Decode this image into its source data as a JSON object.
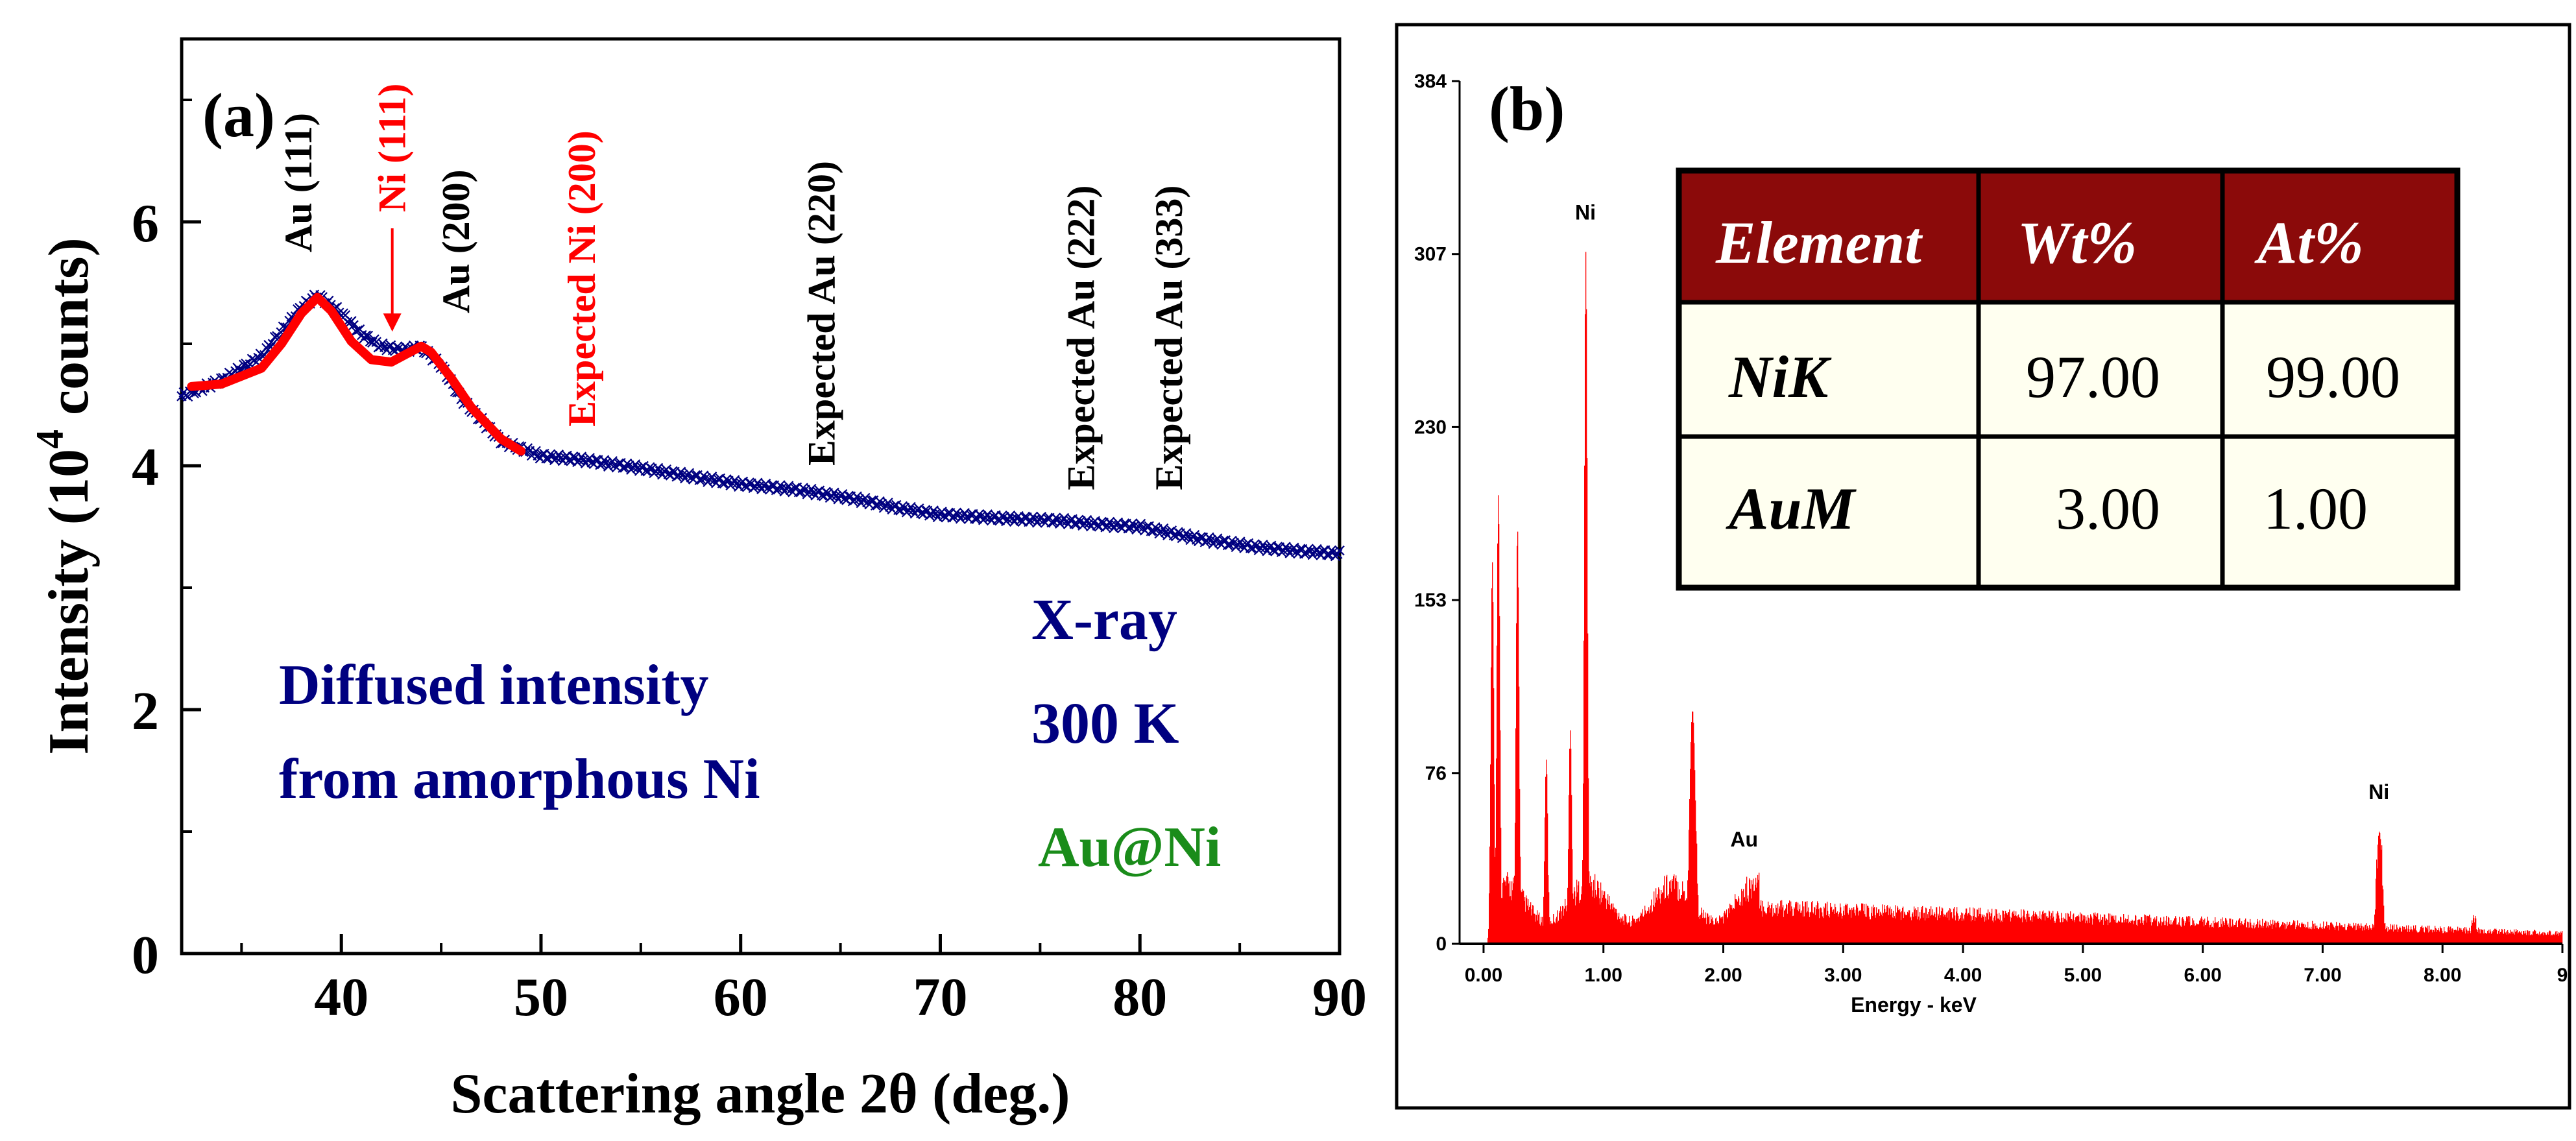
{
  "colors": {
    "xrd_data": "#000080",
    "xrd_fit": "#ff0000",
    "expected_ni": "#ff0000",
    "text_blue": "#000080",
    "text_green": "#1a8c1a",
    "eds_spectrum": "#ff0000",
    "table_header_bg": "#8b0a0a",
    "table_cell_bg": "#fffff0"
  },
  "chart_data": [
    {
      "type": "scatter",
      "panel_label": "(a)",
      "title": "",
      "xlabel": "Scattering angle 2θ (deg.)",
      "ylabel_main": "Intensity (10",
      "ylabel_sup": "4",
      "ylabel_tail": " counts)",
      "xlim": [
        32,
        90
      ],
      "ylim": [
        0,
        7.5
      ],
      "xticks": [
        40,
        50,
        60,
        70,
        80,
        90
      ],
      "yticks": [
        0,
        2,
        4,
        6
      ],
      "grid": false,
      "series": [
        {
          "marker": "x",
          "x": [
            32,
            34,
            36,
            37,
            38,
            38.8,
            40,
            41,
            42,
            43,
            44,
            45,
            46,
            48,
            50,
            52,
            55,
            58,
            60,
            63,
            66,
            68,
            70,
            73,
            76,
            78,
            80,
            83,
            86,
            88,
            90
          ],
          "y": [
            4.57,
            4.7,
            4.9,
            5.1,
            5.3,
            5.4,
            5.25,
            5.08,
            4.98,
            4.95,
            4.97,
            4.82,
            4.55,
            4.2,
            4.08,
            4.05,
            3.98,
            3.9,
            3.85,
            3.8,
            3.72,
            3.65,
            3.6,
            3.57,
            3.55,
            3.52,
            3.5,
            3.4,
            3.33,
            3.3,
            3.28
          ]
        },
        {
          "type": "line",
          "x": [
            32.5,
            34,
            36,
            37,
            38,
            38.8,
            39.5,
            40.5,
            41.5,
            42.5,
            43.3,
            44,
            44.5,
            45.5,
            46.5,
            48,
            49
          ],
          "y": [
            4.65,
            4.67,
            4.8,
            5.0,
            5.25,
            5.38,
            5.27,
            5.02,
            4.87,
            4.85,
            4.92,
            4.98,
            4.93,
            4.72,
            4.48,
            4.22,
            4.12
          ]
        }
      ],
      "annotations": [
        {
          "text": "Au (111)",
          "x": 38.5,
          "y": 5.75,
          "color": "black"
        },
        {
          "text": "Ni (111)",
          "x": 43.2,
          "y": 6.08,
          "color": "red",
          "arrow_to_y": 5.1
        },
        {
          "text": "Au (200)",
          "x": 46.4,
          "y": 5.25,
          "color": "black"
        },
        {
          "text": "Expected Ni (200)",
          "x": 52.7,
          "y": 4.32,
          "color": "red"
        },
        {
          "text": "Expected Au (220)",
          "x": 64.7,
          "y": 4.0,
          "color": "black"
        },
        {
          "text": "Expected Au (222)",
          "x": 77.7,
          "y": 3.8,
          "color": "black"
        },
        {
          "text": "Expected Au (333)",
          "x": 82.1,
          "y": 3.8,
          "color": "black"
        }
      ],
      "texts": {
        "diffused_line1": "Diffused intensity",
        "diffused_line2": "from amorphous Ni",
        "xray": "X-ray",
        "temp": "300 K",
        "sample": "Au@Ni"
      }
    },
    {
      "type": "bar",
      "panel_label": "(b)",
      "title": "",
      "xlabel": "Energy - keV",
      "xlim": [
        -0.2,
        9.0
      ],
      "ylim": [
        0,
        384
      ],
      "xticks": [
        "0.00",
        "1.00",
        "2.00",
        "3.00",
        "4.00",
        "5.00",
        "6.00",
        "7.00",
        "8.00",
        "9"
      ],
      "yticks": [
        "0",
        "76",
        "153",
        "230",
        "307",
        "384"
      ],
      "peaks": [
        {
          "energy": 0.12,
          "counts": 200
        },
        {
          "energy": 0.07,
          "counts": 170
        },
        {
          "energy": 0.28,
          "counts": 185
        },
        {
          "energy": 0.52,
          "counts": 82
        },
        {
          "energy": 0.72,
          "counts": 95
        },
        {
          "energy": 0.85,
          "counts": 308,
          "label": "Ni"
        },
        {
          "energy": 1.74,
          "counts": 104
        },
        {
          "energy": 2.12,
          "counts": 25,
          "label": "Au"
        },
        {
          "energy": 7.47,
          "counts": 50,
          "label": "Ni"
        },
        {
          "energy": 8.26,
          "counts": 12
        }
      ],
      "table": {
        "headers": [
          "Element",
          "Wt%",
          "At%"
        ],
        "rows": [
          [
            "NiK",
            "97.00",
            "99.00"
          ],
          [
            "AuM",
            "3.00",
            "1.00"
          ]
        ]
      }
    }
  ]
}
